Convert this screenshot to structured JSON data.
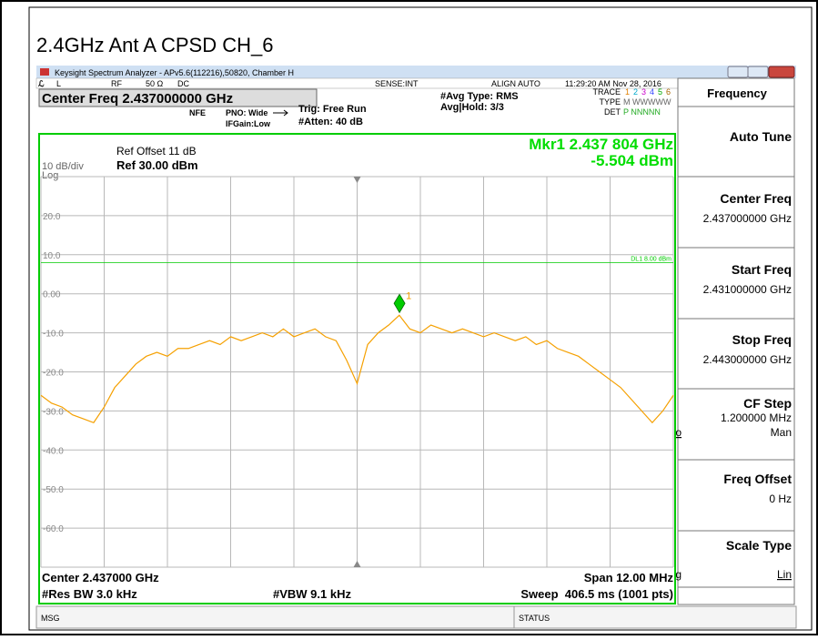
{
  "page_title": "2.4GHz Ant A CPSD CH_6",
  "window_title": "Keysight Spectrum Analyzer - APv5.6(112216),50820, Chamber H",
  "toolbar": {
    "input": "L",
    "rf": "RF",
    "impedance": "50 Ω",
    "coupling": "DC",
    "sense": "SENSE:INT",
    "align": "ALIGN AUTO",
    "time": "11:29:20 AM Nov 28, 2016"
  },
  "header": {
    "center_freq": "Center Freq 2.437000000 GHz",
    "nfe": "NFE",
    "pno": "PNO: Wide",
    "ifgain": "IFGain:Low",
    "trig": "Trig: Free Run",
    "atten": "#Atten: 40 dB",
    "avg_type": "#Avg Type: RMS",
    "avg_hold": "Avg|Hold: 3/3",
    "trace_label": "TRACE",
    "trace_nums": [
      "1",
      "2",
      "3",
      "4",
      "5",
      "6"
    ],
    "type_label": "TYPE",
    "type_value": "M WWWWW",
    "det_label": "DET",
    "det_value": "P NNNNN"
  },
  "softkeys": {
    "menu": "Frequency",
    "auto_tune": "Auto Tune",
    "center_freq": "Center Freq",
    "center_freq_value": "2.437000000 GHz",
    "start_freq": "Start Freq",
    "start_freq_value": "2.431000000 GHz",
    "stop_freq": "Stop Freq",
    "stop_freq_value": "2.443000000 GHz",
    "cf_step": "CF Step",
    "cf_step_value": "1.200000 MHz",
    "cf_auto": "Auto",
    "cf_man": "Man",
    "freq_offset": "Freq Offset",
    "freq_offset_value": "0 Hz",
    "scale_type": "Scale Type",
    "scale_log": "Log",
    "scale_lin": "Lin"
  },
  "status": {
    "msg": "MSG",
    "status": "STATUS"
  },
  "chart_data": {
    "type": "line",
    "color": "#f5a000",
    "ref_offset": "Ref Offset 11 dB",
    "scale": "10 dB/div",
    "ref_level": "Ref 30.00 dBm",
    "scale_mode": "Log",
    "marker_readout": [
      "Mkr1 2.437 804 GHz",
      "-5.504 dBm"
    ],
    "marker": {
      "x": 2.437804,
      "value": -5.504,
      "label": "1",
      "color": "#00cc00"
    },
    "display_line": {
      "value": 8,
      "label": "DL1 8.00 dBm",
      "color": "#00cc00"
    },
    "footer": [
      "Center 2.437000 GHz",
      "Span 12.00 MHz",
      "#Res BW 3.0 kHz",
      "#VBW 9.1 kHz",
      "Sweep  406.5 ms (1001 pts)"
    ],
    "xlim": [
      2.431,
      2.443
    ],
    "ylim": [
      -70,
      30
    ],
    "xticks": [
      2.431,
      2.4322,
      2.4334,
      2.4346,
      2.4358,
      2.437,
      2.4382,
      2.4394,
      2.4406,
      2.4418,
      2.443
    ],
    "yticks": [
      {
        "value": 20,
        "label": "20.0"
      },
      {
        "value": 10,
        "label": "10.0"
      },
      {
        "value": 0,
        "label": "0.00"
      },
      {
        "value": -10,
        "label": "-10.0"
      },
      {
        "value": -20,
        "label": "-20.0"
      },
      {
        "value": -30,
        "label": "-30.0"
      },
      {
        "value": -40,
        "label": "-40.0"
      },
      {
        "value": -50,
        "label": "-50.0"
      },
      {
        "value": -60,
        "label": "-60.0"
      }
    ],
    "grid": true,
    "x": [
      2.431,
      2.4312,
      2.4314,
      2.4316,
      2.4318,
      2.432,
      2.4322,
      2.4324,
      2.4326,
      2.4328,
      2.433,
      2.4332,
      2.4334,
      2.4336,
      2.4338,
      2.434,
      2.4342,
      2.4344,
      2.4346,
      2.4348,
      2.435,
      2.4352,
      2.4354,
      2.4356,
      2.4358,
      2.436,
      2.4362,
      2.4364,
      2.4366,
      2.4368,
      2.437,
      2.4372,
      2.4374,
      2.4376,
      2.4378,
      2.438,
      2.4382,
      2.4384,
      2.4386,
      2.4388,
      2.439,
      2.4392,
      2.4394,
      2.4396,
      2.4398,
      2.44,
      2.4402,
      2.4404,
      2.4406,
      2.4408,
      2.441,
      2.4412,
      2.4414,
      2.4416,
      2.4418,
      2.442,
      2.4422,
      2.4424,
      2.4426,
      2.4428,
      2.443
    ],
    "values": [
      -26,
      -28,
      -29,
      -31,
      -32,
      -33,
      -29,
      -24,
      -21,
      -18,
      -16,
      -15,
      -16,
      -14,
      -14,
      -13,
      -12,
      -13,
      -11,
      -12,
      -11,
      -10,
      -11,
      -9,
      -11,
      -10,
      -9,
      -11,
      -12,
      -17,
      -23,
      -13,
      -10,
      -8,
      -5.5,
      -9,
      -10,
      -8,
      -9,
      -10,
      -9,
      -10,
      -11,
      -10,
      -11,
      -12,
      -11,
      -13,
      -12,
      -14,
      -15,
      -16,
      -18,
      -20,
      -22,
      -24,
      -27,
      -30,
      -33,
      -30,
      -26
    ]
  }
}
